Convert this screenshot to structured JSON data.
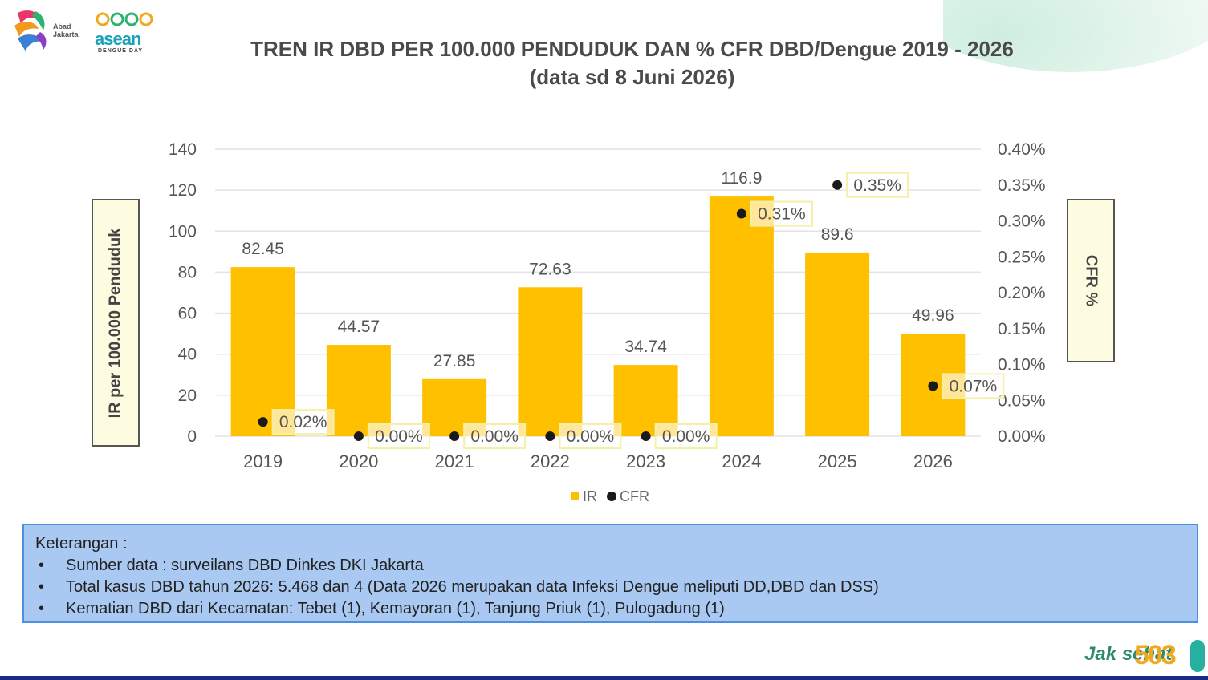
{
  "header": {
    "title_line1": "TREN IR DBD PER 100.000 PENDUDUK DAN % CFR DBD/Dengue 2019 - 2026",
    "title_line2": "(data sd 8 Juni 2026)",
    "logo_left_text": "Abad Jakarta",
    "logo_center_main": "asean",
    "logo_center_sub": "DENGUE DAY",
    "logo_right_text": "Jak sehat",
    "logo_right_sub": "sehat",
    "logo_right_num": "503"
  },
  "colors": {
    "bar": "#FFC000",
    "point": "#1a1a1a",
    "gridline": "#e3e3e3",
    "label_box_border": "#f5f0a8",
    "axis_box_fill": "#fdfbe0",
    "notes_fill": "#a9c9f2",
    "notes_border": "#4d8fe0"
  },
  "chart_data": {
    "type": "bar",
    "categories": [
      "2019",
      "2020",
      "2021",
      "2022",
      "2023",
      "2024",
      "2025",
      "2026"
    ],
    "series": [
      {
        "name": "IR",
        "axis": "left",
        "type": "bar",
        "values": [
          82.45,
          44.57,
          27.85,
          72.63,
          34.74,
          116.9,
          89.6,
          49.96
        ],
        "labels": [
          "82.45",
          "44.57",
          "27.85",
          "72.63",
          "34.74",
          "116.9",
          "89.6",
          "49.96"
        ]
      },
      {
        "name": "CFR",
        "axis": "right",
        "type": "scatter",
        "values": [
          0.02,
          0.0,
          0.0,
          0.0,
          0.0,
          0.31,
          0.35,
          0.07
        ],
        "labels": [
          "0.02%",
          "0.00%",
          "0.00%",
          "0.00%",
          "0.00%",
          "0.31%",
          "0.35%",
          "0.07%"
        ]
      }
    ],
    "ylabel": "IR per 100.000 Penduduk",
    "y2label": "CFR %",
    "ylim": [
      0,
      140
    ],
    "y2lim": [
      0,
      0.4
    ],
    "yticks": [
      "0",
      "20",
      "40",
      "60",
      "80",
      "100",
      "120",
      "140"
    ],
    "y2ticks": [
      "0.00%",
      "0.05%",
      "0.10%",
      "0.15%",
      "0.20%",
      "0.25%",
      "0.30%",
      "0.35%",
      "0.40%"
    ],
    "grid": true,
    "legend_position": "bottom-center",
    "legend": [
      "IR",
      "CFR"
    ]
  },
  "notes": {
    "heading": "Keterangan :",
    "items": [
      "Sumber data : surveilans DBD Dinkes DKI Jakarta",
      "Total kasus DBD tahun 2026: 5.468 dan 4 (Data 2026 merupakan data Infeksi Dengue meliputi DD,DBD dan DSS)",
      "Kematian DBD dari Kecamatan: Tebet (1), Kemayoran (1), Tanjung Priuk (1), Pulogadung (1)"
    ]
  }
}
